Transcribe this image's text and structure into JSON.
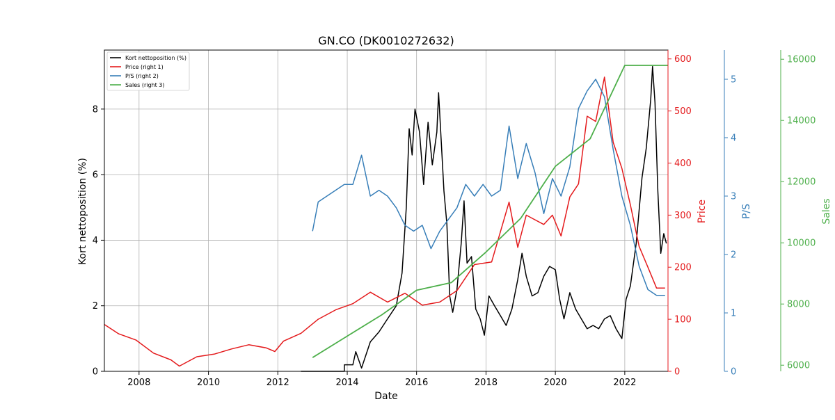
{
  "chart_data": {
    "type": "line",
    "title": "GN.CO (DK0010272632)",
    "xlabel": "Date",
    "xlim": [
      "2007-01-01",
      "2023-04-01"
    ],
    "x_ticks": [
      "2008",
      "2010",
      "2012",
      "2014",
      "2016",
      "2018",
      "2020",
      "2022"
    ],
    "grid": true,
    "legend_position": "top-left",
    "axes": [
      {
        "id": "left",
        "label": "Kort nettoposition (%)",
        "color": "#000000",
        "ylim": [
          0,
          9.8
        ],
        "ticks": [
          0,
          2,
          4,
          6,
          8
        ]
      },
      {
        "id": "right1",
        "label": "Price",
        "color": "#e41a1c",
        "ylim": [
          0,
          617
        ],
        "ticks": [
          0,
          100,
          200,
          300,
          400,
          500,
          600
        ]
      },
      {
        "id": "right2",
        "label": "P/S",
        "color": "#377eb8",
        "ylim": [
          0,
          5.5
        ],
        "ticks": [
          0,
          1,
          2,
          3,
          4,
          5
        ]
      },
      {
        "id": "right3",
        "label": "Sales",
        "color": "#4daf4a",
        "ylim": [
          5800,
          16300
        ],
        "ticks": [
          6000,
          8000,
          10000,
          12000,
          14000,
          16000
        ]
      }
    ],
    "series": [
      {
        "name": "Kort nettoposition (%)",
        "axis": "left",
        "color": "#000000",
        "points": [
          [
            "2012-09-01",
            0
          ],
          [
            "2013-12-01",
            0
          ],
          [
            "2013-12-02",
            0.2
          ],
          [
            "2014-03-01",
            0.2
          ],
          [
            "2014-04-01",
            0.6
          ],
          [
            "2014-06-01",
            0.1
          ],
          [
            "2014-09-01",
            0.9
          ],
          [
            "2014-12-01",
            1.2
          ],
          [
            "2015-03-01",
            1.6
          ],
          [
            "2015-06-01",
            2.0
          ],
          [
            "2015-08-01",
            3.0
          ],
          [
            "2015-09-15",
            5.0
          ],
          [
            "2015-10-15",
            7.4
          ],
          [
            "2015-11-15",
            6.6
          ],
          [
            "2015-12-15",
            8.0
          ],
          [
            "2016-02-01",
            7.3
          ],
          [
            "2016-03-15",
            5.7
          ],
          [
            "2016-05-01",
            7.6
          ],
          [
            "2016-06-15",
            6.3
          ],
          [
            "2016-08-01",
            7.3
          ],
          [
            "2016-08-20",
            8.5
          ],
          [
            "2016-09-15",
            7.1
          ],
          [
            "2016-10-15",
            5.5
          ],
          [
            "2016-11-15",
            4.5
          ],
          [
            "2016-12-15",
            2.3
          ],
          [
            "2017-01-15",
            1.8
          ],
          [
            "2017-03-01",
            2.5
          ],
          [
            "2017-04-15",
            3.9
          ],
          [
            "2017-05-15",
            5.2
          ],
          [
            "2017-06-15",
            3.3
          ],
          [
            "2017-08-01",
            3.5
          ],
          [
            "2017-09-15",
            1.9
          ],
          [
            "2017-11-01",
            1.6
          ],
          [
            "2017-12-15",
            1.1
          ],
          [
            "2018-02-01",
            2.3
          ],
          [
            "2018-04-01",
            2.0
          ],
          [
            "2018-06-01",
            1.7
          ],
          [
            "2018-08-01",
            1.4
          ],
          [
            "2018-10-01",
            1.9
          ],
          [
            "2018-12-01",
            2.8
          ],
          [
            "2019-01-15",
            3.6
          ],
          [
            "2019-03-01",
            2.9
          ],
          [
            "2019-05-01",
            2.3
          ],
          [
            "2019-07-01",
            2.4
          ],
          [
            "2019-09-01",
            2.9
          ],
          [
            "2019-11-01",
            3.2
          ],
          [
            "2020-01-01",
            3.1
          ],
          [
            "2020-02-15",
            2.2
          ],
          [
            "2020-04-01",
            1.6
          ],
          [
            "2020-06-01",
            2.4
          ],
          [
            "2020-08-01",
            1.9
          ],
          [
            "2020-10-01",
            1.6
          ],
          [
            "2020-12-01",
            1.3
          ],
          [
            "2021-02-01",
            1.4
          ],
          [
            "2021-04-01",
            1.3
          ],
          [
            "2021-06-01",
            1.6
          ],
          [
            "2021-08-01",
            1.7
          ],
          [
            "2021-10-01",
            1.3
          ],
          [
            "2021-12-01",
            1.0
          ],
          [
            "2022-01-15",
            2.2
          ],
          [
            "2022-03-01",
            2.6
          ],
          [
            "2022-05-01",
            3.9
          ],
          [
            "2022-07-01",
            5.9
          ],
          [
            "2022-08-15",
            6.8
          ],
          [
            "2022-10-01",
            8.3
          ],
          [
            "2022-10-20",
            9.3
          ],
          [
            "2022-11-15",
            8.2
          ],
          [
            "2022-12-15",
            5.5
          ],
          [
            "2023-01-15",
            3.6
          ],
          [
            "2023-02-15",
            4.2
          ],
          [
            "2023-03-15",
            3.9
          ]
        ]
      },
      {
        "name": "Price (right 1)",
        "axis": "right1",
        "color": "#e41a1c",
        "points": [
          [
            "2007-01-01",
            90
          ],
          [
            "2007-06-01",
            72
          ],
          [
            "2007-12-01",
            60
          ],
          [
            "2008-06-01",
            35
          ],
          [
            "2008-12-01",
            22
          ],
          [
            "2009-03-01",
            10
          ],
          [
            "2009-09-01",
            28
          ],
          [
            "2010-03-01",
            33
          ],
          [
            "2010-09-01",
            43
          ],
          [
            "2011-03-01",
            51
          ],
          [
            "2011-09-01",
            45
          ],
          [
            "2011-12-01",
            38
          ],
          [
            "2012-03-01",
            58
          ],
          [
            "2012-09-01",
            73
          ],
          [
            "2013-03-01",
            100
          ],
          [
            "2013-09-01",
            118
          ],
          [
            "2014-03-01",
            130
          ],
          [
            "2014-09-01",
            152
          ],
          [
            "2015-03-01",
            133
          ],
          [
            "2015-09-01",
            150
          ],
          [
            "2016-03-01",
            127
          ],
          [
            "2016-09-01",
            133
          ],
          [
            "2017-03-01",
            155
          ],
          [
            "2017-09-01",
            205
          ],
          [
            "2018-03-01",
            210
          ],
          [
            "2018-09-01",
            325
          ],
          [
            "2018-12-01",
            238
          ],
          [
            "2019-03-01",
            300
          ],
          [
            "2019-09-01",
            282
          ],
          [
            "2019-12-01",
            300
          ],
          [
            "2020-03-01",
            260
          ],
          [
            "2020-06-01",
            335
          ],
          [
            "2020-09-01",
            360
          ],
          [
            "2020-12-01",
            490
          ],
          [
            "2021-03-01",
            480
          ],
          [
            "2021-06-01",
            565
          ],
          [
            "2021-09-01",
            440
          ],
          [
            "2021-12-01",
            390
          ],
          [
            "2022-03-01",
            320
          ],
          [
            "2022-06-01",
            240
          ],
          [
            "2022-09-01",
            200
          ],
          [
            "2022-12-01",
            160
          ],
          [
            "2023-03-01",
            160
          ]
        ]
      },
      {
        "name": "P/S (right 2)",
        "axis": "right2",
        "color": "#377eb8",
        "points": [
          [
            "2013-01-01",
            2.4
          ],
          [
            "2013-03-01",
            2.9
          ],
          [
            "2013-06-01",
            3.0
          ],
          [
            "2013-12-01",
            3.2
          ],
          [
            "2014-03-01",
            3.2
          ],
          [
            "2014-06-01",
            3.7
          ],
          [
            "2014-09-01",
            3.0
          ],
          [
            "2014-12-01",
            3.1
          ],
          [
            "2015-03-01",
            3.0
          ],
          [
            "2015-06-01",
            2.8
          ],
          [
            "2015-09-01",
            2.5
          ],
          [
            "2015-12-01",
            2.4
          ],
          [
            "2016-03-01",
            2.5
          ],
          [
            "2016-06-01",
            2.1
          ],
          [
            "2016-09-01",
            2.4
          ],
          [
            "2016-12-01",
            2.6
          ],
          [
            "2017-03-01",
            2.8
          ],
          [
            "2017-06-01",
            3.2
          ],
          [
            "2017-09-01",
            3.0
          ],
          [
            "2017-12-01",
            3.2
          ],
          [
            "2018-03-01",
            3.0
          ],
          [
            "2018-06-01",
            3.1
          ],
          [
            "2018-09-01",
            4.2
          ],
          [
            "2018-12-01",
            3.3
          ],
          [
            "2019-03-01",
            3.9
          ],
          [
            "2019-06-01",
            3.4
          ],
          [
            "2019-09-01",
            2.7
          ],
          [
            "2019-12-01",
            3.3
          ],
          [
            "2020-03-01",
            3.0
          ],
          [
            "2020-06-01",
            3.5
          ],
          [
            "2020-09-01",
            4.5
          ],
          [
            "2020-12-01",
            4.8
          ],
          [
            "2021-03-01",
            5.0
          ],
          [
            "2021-06-01",
            4.7
          ],
          [
            "2021-09-01",
            3.8
          ],
          [
            "2021-12-01",
            3.0
          ],
          [
            "2022-03-01",
            2.5
          ],
          [
            "2022-06-01",
            1.8
          ],
          [
            "2022-09-01",
            1.4
          ],
          [
            "2022-12-01",
            1.3
          ],
          [
            "2023-03-01",
            1.3
          ]
        ]
      },
      {
        "name": "Sales (right 3)",
        "axis": "right3",
        "color": "#4daf4a",
        "points": [
          [
            "2013-01-01",
            6250
          ],
          [
            "2014-01-01",
            6950
          ],
          [
            "2015-01-01",
            7650
          ],
          [
            "2016-01-01",
            8450
          ],
          [
            "2017-01-01",
            8700
          ],
          [
            "2018-01-01",
            9700
          ],
          [
            "2019-01-01",
            10800
          ],
          [
            "2020-01-01",
            12500
          ],
          [
            "2021-01-01",
            13400
          ],
          [
            "2022-01-01",
            15800
          ],
          [
            "2023-04-01",
            15800
          ]
        ]
      }
    ]
  }
}
